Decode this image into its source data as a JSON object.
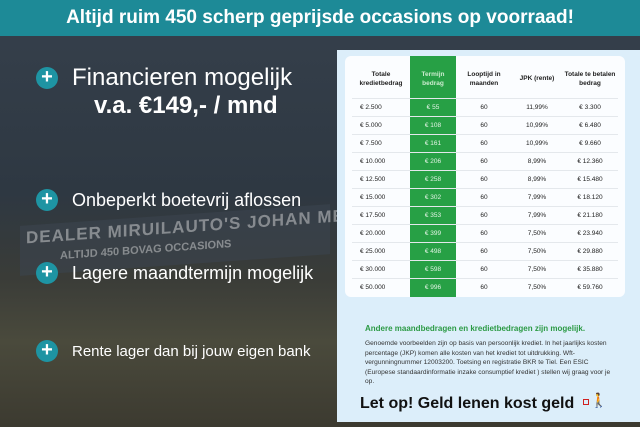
{
  "banner": "Altijd ruim 450 scherp geprijsde occasions op voorraad!",
  "background_sign": {
    "line1": "DEALER MIRUILAUTO'S JOHAN MEURE",
    "line2": "ALTIJD 450 BOVAG OCCASIONS"
  },
  "features": [
    {
      "icon": "plus-icon",
      "label": "Financieren mogelijk"
    },
    {
      "icon": "plus-icon",
      "label": "Onbeperkt boetevrij aflossen"
    },
    {
      "icon": "plus-icon",
      "label": "Lagere maandtermijn mogelijk"
    },
    {
      "icon": "plus-icon",
      "label": "Rente lager dan bij jouw eigen bank"
    }
  ],
  "price": "v.a. €149,- / mnd",
  "table": {
    "headers": [
      "Totale kredietbedrag",
      "Termijn bedrag",
      "Looptijd in maanden",
      "JPK (rente)",
      "Totale te betalen bedrag"
    ],
    "rows": [
      [
        "€ 2.500",
        "€ 55",
        "60",
        "11,99%",
        "€ 3.300"
      ],
      [
        "€ 5.000",
        "€ 108",
        "60",
        "10,99%",
        "€ 6.480"
      ],
      [
        "€ 7.500",
        "€ 161",
        "60",
        "10,99%",
        "€ 9.660"
      ],
      [
        "€ 10.000",
        "€ 206",
        "60",
        "8,99%",
        "€ 12.360"
      ],
      [
        "€ 12.500",
        "€ 258",
        "60",
        "8,99%",
        "€ 15.480"
      ],
      [
        "€ 15.000",
        "€ 302",
        "60",
        "7,99%",
        "€ 18.120"
      ],
      [
        "€ 17.500",
        "€ 353",
        "60",
        "7,99%",
        "€ 21.180"
      ],
      [
        "€ 20.000",
        "€ 399",
        "60",
        "7,50%",
        "€ 23.940"
      ],
      [
        "€ 25.000",
        "€ 498",
        "60",
        "7,50%",
        "€ 29.880"
      ],
      [
        "€ 30.000",
        "€ 598",
        "60",
        "7,50%",
        "€ 35.880"
      ],
      [
        "€ 50.000",
        "€ 996",
        "60",
        "7,50%",
        "€ 59.760"
      ]
    ],
    "highlight_color": "#27a045"
  },
  "other_amounts": "Andere maandbedragen en kredietbedragen zijn mogelijk.",
  "disclaimer": "Genoemde voorbeelden zijn op basis van persoonlijk krediet. In het jaarlijks kosten percentage (JKP) komen alle kosten van het krediet tot uitdrukking. Wft-vergunningnummer 12003200. Toetsing en registratie BKR te Tiel. Een ESIC (Europese standaardinformatie inzake consumptief krediet ) stellen wij graag voor je op.",
  "warning": "Let op! Geld lenen kost geld",
  "colors": {
    "banner": "#1d8a97",
    "accent": "#1e94a3",
    "green": "#27a045"
  }
}
